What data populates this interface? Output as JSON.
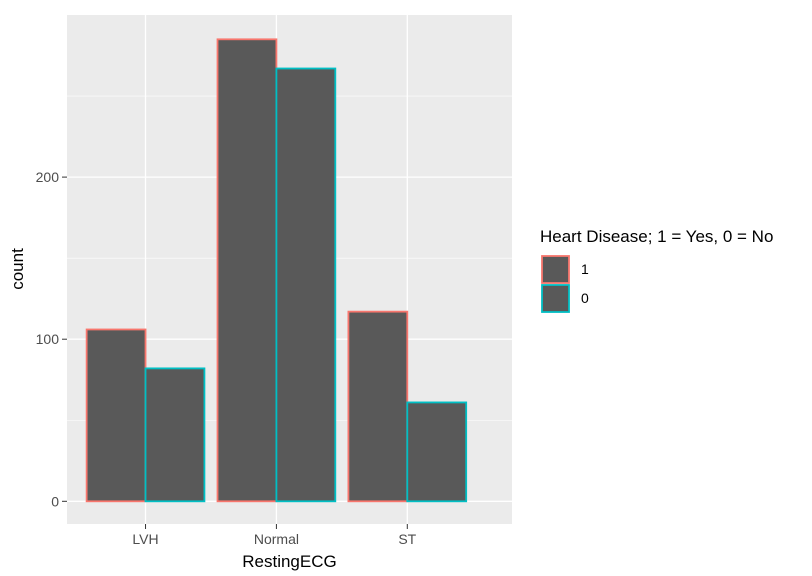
{
  "chart_data": {
    "type": "bar",
    "title": "",
    "xlabel": "RestingECG",
    "ylabel": "count",
    "categories": [
      "LVH",
      "Normal",
      "ST"
    ],
    "series": [
      {
        "name": "1",
        "values": [
          106,
          285,
          117
        ]
      },
      {
        "name": "0",
        "values": [
          82,
          267,
          61
        ]
      }
    ],
    "ylim": [
      -14,
      300
    ],
    "yticks": [
      0,
      100,
      200
    ],
    "ytick_labels": [
      "0",
      "100",
      "200"
    ],
    "grid": true,
    "legend": {
      "title": "Heart Disease; 1 = Yes, 0 = No",
      "placement": "right",
      "entries": [
        "1",
        "0"
      ]
    },
    "colors": {
      "panel_bg": "#EBEBEB",
      "grid": "#FFFFFF",
      "bar_fill": "#595959",
      "series_outline": [
        "#F8766D",
        "#00BFC4"
      ]
    }
  }
}
